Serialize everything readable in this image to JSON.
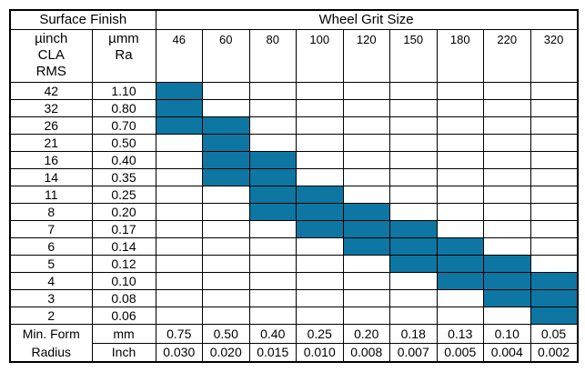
{
  "colors": {
    "fill": "#0E76A2",
    "border": "#000000",
    "background": "#FFFFFF"
  },
  "table": {
    "header": {
      "surface_finish_label": "Surface Finish",
      "wheel_grit_label": "Wheel Grit Size",
      "col1_lines": [
        "µinch",
        "CLA",
        "RMS"
      ],
      "col2_lines": [
        "µmm",
        "Ra"
      ],
      "grit_sizes": [
        "46",
        "60",
        "80",
        "100",
        "120",
        "150",
        "180",
        "220",
        "320"
      ]
    },
    "rows": [
      {
        "uinch": "42",
        "umm": "1.10",
        "filled": [
          0
        ]
      },
      {
        "uinch": "32",
        "umm": "0.80",
        "filled": [
          0
        ]
      },
      {
        "uinch": "26",
        "umm": "0.70",
        "filled": [
          0,
          1
        ]
      },
      {
        "uinch": "21",
        "umm": "0.50",
        "filled": [
          1
        ]
      },
      {
        "uinch": "16",
        "umm": "0.40",
        "filled": [
          1,
          2
        ]
      },
      {
        "uinch": "14",
        "umm": "0.35",
        "filled": [
          1,
          2
        ]
      },
      {
        "uinch": "11",
        "umm": "0.25",
        "filled": [
          2,
          3
        ]
      },
      {
        "uinch": "8",
        "umm": "0.20",
        "filled": [
          2,
          3,
          4
        ]
      },
      {
        "uinch": "7",
        "umm": "0.17",
        "filled": [
          3,
          4,
          5
        ]
      },
      {
        "uinch": "6",
        "umm": "0.14",
        "filled": [
          4,
          5,
          6
        ]
      },
      {
        "uinch": "5",
        "umm": "0.12",
        "filled": [
          5,
          6,
          7
        ]
      },
      {
        "uinch": "4",
        "umm": "0.10",
        "filled": [
          6,
          7,
          8
        ]
      },
      {
        "uinch": "3",
        "umm": "0.08",
        "filled": [
          7,
          8
        ]
      },
      {
        "uinch": "2",
        "umm": "0.06",
        "filled": [
          8
        ]
      }
    ],
    "footer": {
      "label_lines": [
        "Min. Form",
        "Radius"
      ],
      "mm_label": "mm",
      "inch_label": "Inch",
      "mm_values": [
        "0.75",
        "0.50",
        "0.40",
        "0.25",
        "0.20",
        "0.18",
        "0.13",
        "0.10",
        "0.05"
      ],
      "inch_values": [
        "0.030",
        "0.020",
        "0.015",
        "0.010",
        "0.008",
        "0.007",
        "0.005",
        "0.004",
        "0.002"
      ]
    }
  }
}
